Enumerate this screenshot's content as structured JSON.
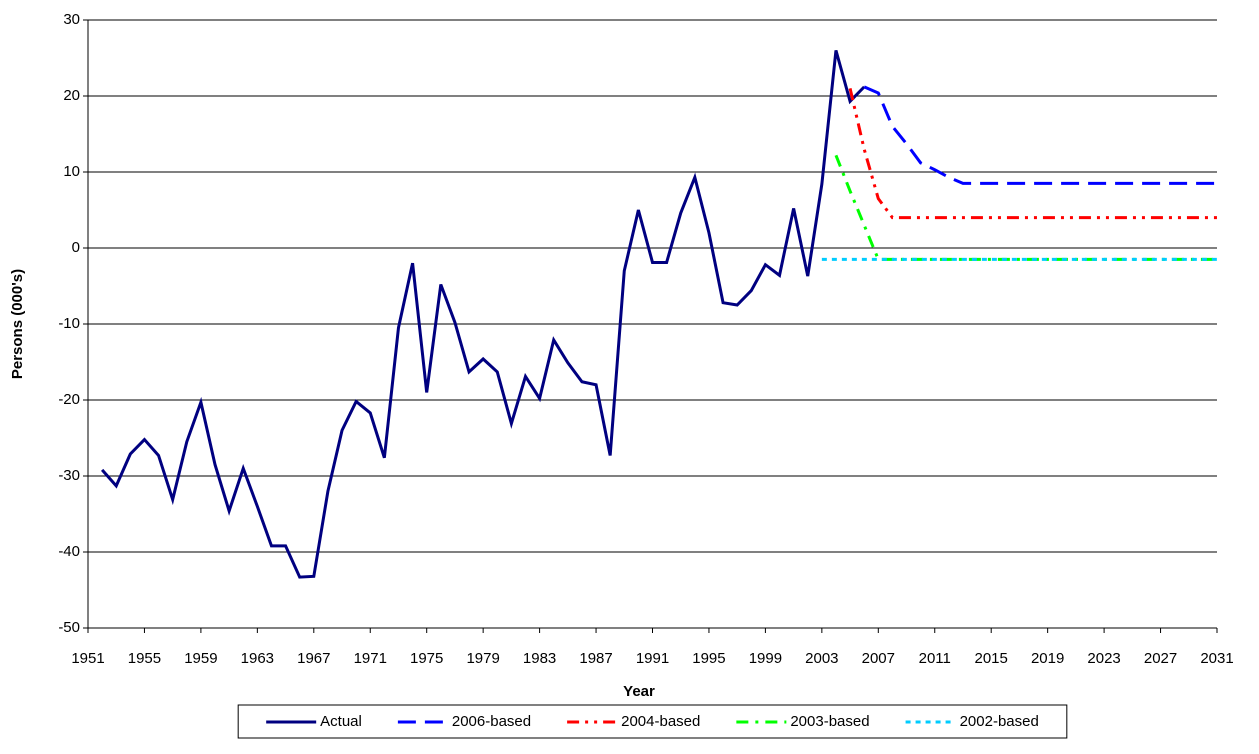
{
  "chart_data": {
    "type": "line",
    "x_label": "Year",
    "y_label": "Persons (000's)",
    "xlim": [
      1951,
      2031
    ],
    "xticks": [
      1951,
      1955,
      1959,
      1963,
      1967,
      1971,
      1975,
      1979,
      1983,
      1987,
      1991,
      1995,
      1999,
      2003,
      2007,
      2011,
      2015,
      2019,
      2023,
      2027,
      2031
    ],
    "ylim": [
      -50,
      30
    ],
    "yticks": [
      -50,
      -40,
      -30,
      -20,
      -10,
      0,
      10,
      20,
      30
    ],
    "grid": true,
    "legend": "bottom",
    "series": [
      {
        "name": "Actual",
        "color": "#000080",
        "style": "solid",
        "x": [
          1952,
          1953,
          1954,
          1955,
          1956,
          1957,
          1958,
          1959,
          1960,
          1961,
          1962,
          1963,
          1964,
          1965,
          1966,
          1967,
          1968,
          1969,
          1970,
          1971,
          1972,
          1973,
          1974,
          1975,
          1976,
          1977,
          1978,
          1979,
          1980,
          1981,
          1982,
          1983,
          1984,
          1985,
          1986,
          1987,
          1988,
          1989,
          1990,
          1991,
          1992,
          1993,
          1994,
          1995,
          1996,
          1997,
          1998,
          1999,
          2000,
          2001,
          2002,
          2003,
          2004,
          2005,
          2006
        ],
        "values": [
          -29.2,
          -31.3,
          -27.1,
          -25.2,
          -27.3,
          -33.1,
          -25.5,
          -20.3,
          -28.5,
          -34.6,
          -29.0,
          -34.0,
          -39.2,
          -39.2,
          -43.3,
          -43.2,
          -32.0,
          -24.0,
          -20.2,
          -21.7,
          -27.6,
          -10.5,
          -2.0,
          -19.0,
          -4.8,
          -9.8,
          -16.3,
          -14.6,
          -16.3,
          -23.1,
          -16.9,
          -19.8,
          -12.1,
          -15.1,
          -17.6,
          -18.0,
          -27.3,
          -3.0,
          5.0,
          -1.9,
          -1.9,
          4.6,
          9.3,
          2.0,
          -7.2,
          -7.5,
          -5.6,
          -2.2,
          -3.6,
          5.2,
          -3.7,
          8.4,
          26.0,
          19.3,
          21.2
        ]
      },
      {
        "name": "2006-based",
        "color": "#0000ff",
        "style": "dash",
        "x": [
          2006,
          2007,
          2008,
          2009,
          2010,
          2011,
          2012,
          2013,
          2014,
          2015,
          2016,
          2017,
          2018,
          2019,
          2020,
          2021,
          2022,
          2023,
          2024,
          2025,
          2026,
          2027,
          2028,
          2029,
          2030,
          2031
        ],
        "values": [
          21.2,
          20.4,
          16.0,
          13.7,
          11.2,
          10.3,
          9.3,
          8.5,
          8.5,
          8.5,
          8.5,
          8.5,
          8.5,
          8.5,
          8.5,
          8.5,
          8.5,
          8.5,
          8.5,
          8.5,
          8.5,
          8.5,
          8.5,
          8.5,
          8.5,
          8.5
        ]
      },
      {
        "name": "2004-based",
        "color": "#ff0000",
        "style": "dash-dot-dot",
        "x": [
          2005,
          2006,
          2007,
          2008,
          2009,
          2010,
          2011,
          2012,
          2013,
          2014,
          2015,
          2016,
          2017,
          2018,
          2019,
          2020,
          2021,
          2022,
          2023,
          2024,
          2025,
          2026,
          2027,
          2028,
          2029,
          2030,
          2031
        ],
        "values": [
          21.0,
          13.0,
          6.5,
          4.0,
          4.0,
          4.0,
          4.0,
          4.0,
          4.0,
          4.0,
          4.0,
          4.0,
          4.0,
          4.0,
          4.0,
          4.0,
          4.0,
          4.0,
          4.0,
          4.0,
          4.0,
          4.0,
          4.0,
          4.0,
          4.0,
          4.0,
          4.0
        ]
      },
      {
        "name": "2003-based",
        "color": "#00ff00",
        "style": "dash-dot",
        "x": [
          2004,
          2005,
          2006,
          2007,
          2008,
          2009,
          2010,
          2011,
          2012,
          2013,
          2014,
          2015,
          2016,
          2017,
          2018,
          2019,
          2020,
          2021,
          2022,
          2023,
          2024,
          2025,
          2026,
          2027,
          2028,
          2029,
          2030,
          2031
        ],
        "values": [
          12.2,
          7.5,
          3.0,
          -1.5,
          -1.5,
          -1.5,
          -1.5,
          -1.5,
          -1.5,
          -1.5,
          -1.5,
          -1.5,
          -1.5,
          -1.5,
          -1.5,
          -1.5,
          -1.5,
          -1.5,
          -1.5,
          -1.5,
          -1.5,
          -1.5,
          -1.5,
          -1.5,
          -1.5,
          -1.5,
          -1.5,
          -1.5
        ]
      },
      {
        "name": "2002-based",
        "color": "#00ccff",
        "style": "dot",
        "x": [
          2003,
          2004,
          2005,
          2006,
          2007,
          2008,
          2009,
          2010,
          2011,
          2012,
          2013,
          2014,
          2015,
          2016,
          2017,
          2018,
          2019,
          2020,
          2021,
          2022,
          2023,
          2024,
          2025,
          2026,
          2027,
          2028,
          2029,
          2030,
          2031
        ],
        "values": [
          -1.5,
          -1.5,
          -1.5,
          -1.5,
          -1.5,
          -1.5,
          -1.5,
          -1.5,
          -1.5,
          -1.5,
          -1.5,
          -1.5,
          -1.5,
          -1.5,
          -1.5,
          -1.5,
          -1.5,
          -1.5,
          -1.5,
          -1.5,
          -1.5,
          -1.5,
          -1.5,
          -1.5,
          -1.5,
          -1.5,
          -1.5,
          -1.5,
          -1.5
        ]
      }
    ]
  }
}
